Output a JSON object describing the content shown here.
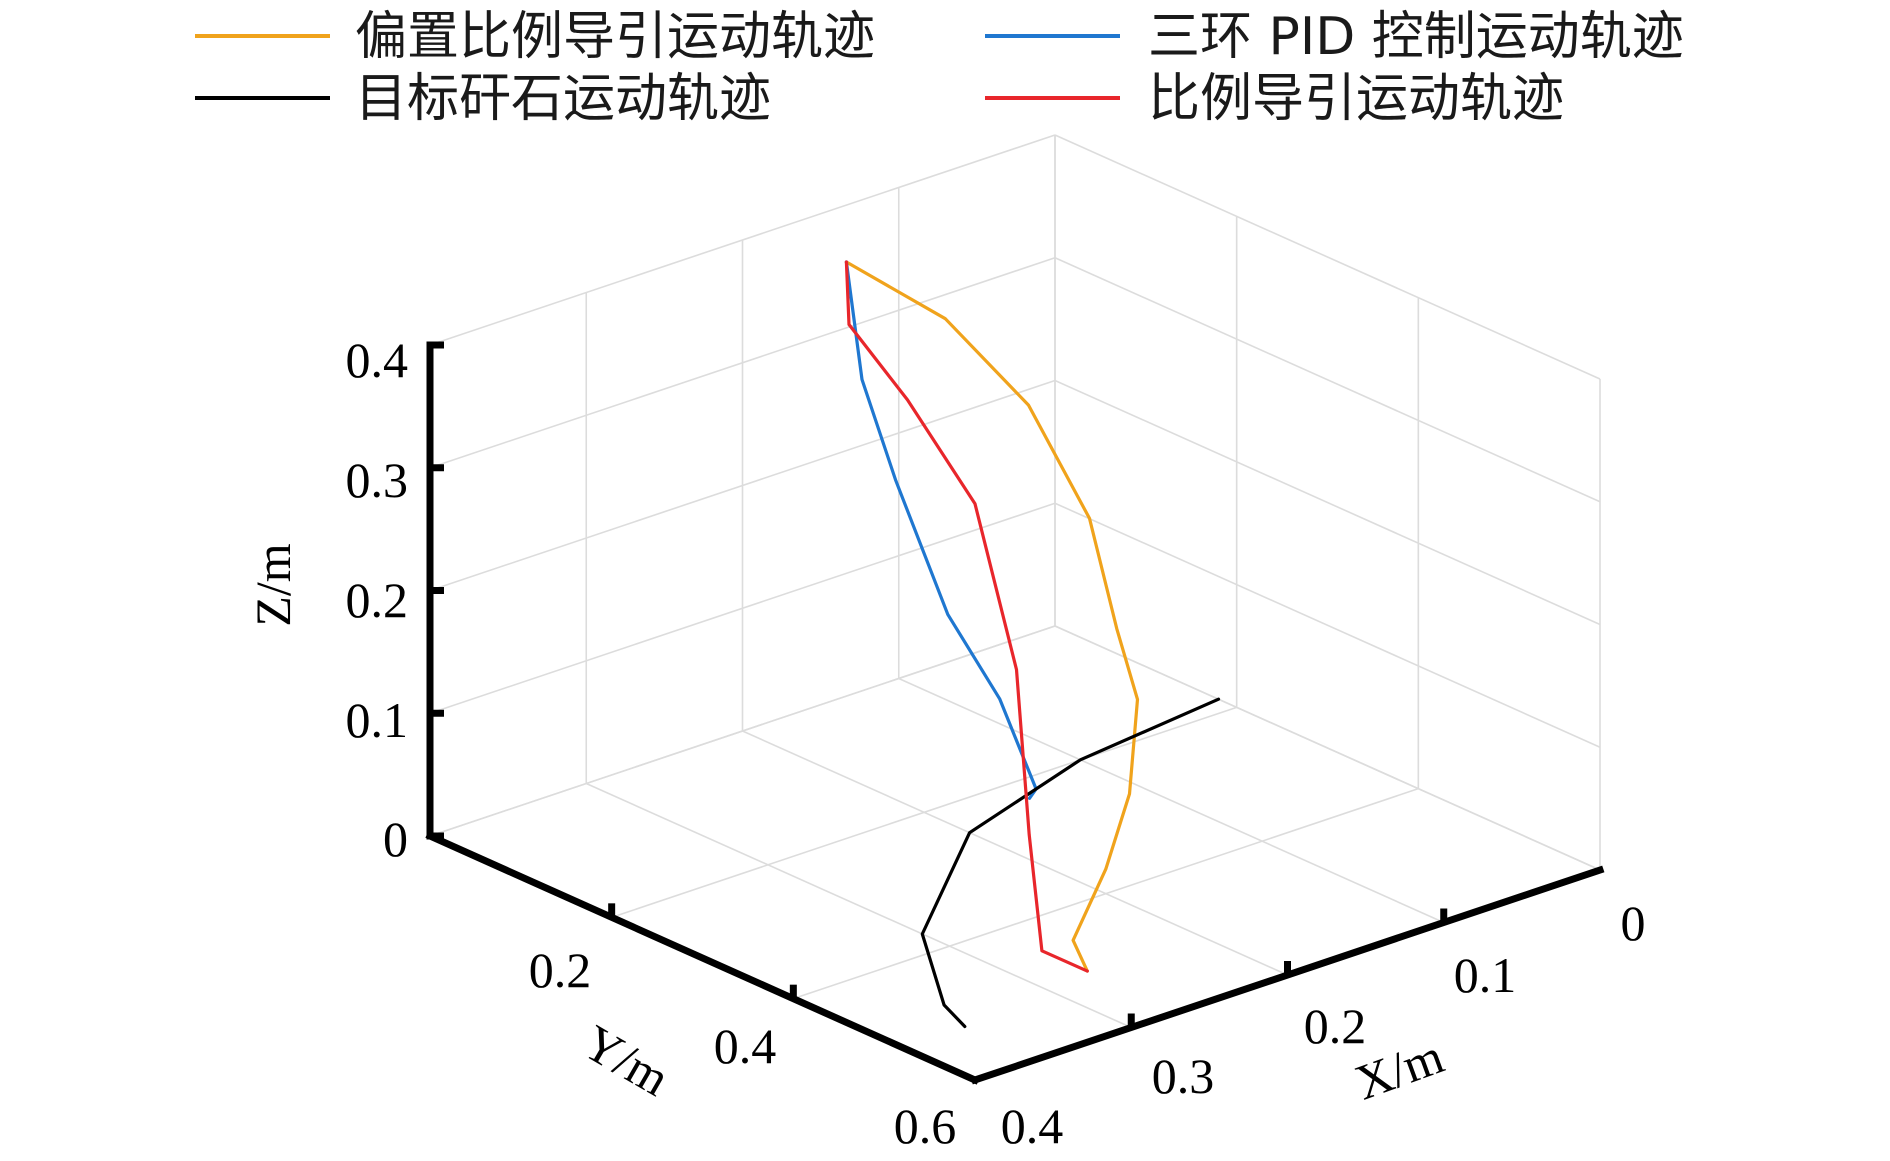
{
  "chart_data": {
    "type": "line",
    "dimensions": 3,
    "xlabel": "X/m",
    "ylabel": "Y/m",
    "zlabel": "Z/m",
    "xlim": [
      0,
      0.4
    ],
    "ylim": [
      0,
      0.6
    ],
    "zlim": [
      0,
      0.4
    ],
    "xticks": [
      "0",
      "0.1",
      "0.2",
      "0.3",
      "0.4"
    ],
    "yticks": [
      "0.2",
      "0.4",
      "0.6"
    ],
    "zticks": [
      "0",
      "0.1",
      "0.2",
      "0.3",
      "0.4"
    ],
    "grid": true,
    "legend_position": "top",
    "series": [
      {
        "name": "偏置比例导引运动轨迹",
        "color": "#f0a31c",
        "points": [
          [
            0.18,
            0.08,
            0.4
          ],
          [
            0.14,
            0.12,
            0.35
          ],
          [
            0.11,
            0.16,
            0.28
          ],
          [
            0.1,
            0.21,
            0.2
          ],
          [
            0.1,
            0.24,
            0.12
          ],
          [
            0.11,
            0.28,
            0.08
          ],
          [
            0.15,
            0.34,
            0.04
          ],
          [
            0.2,
            0.4,
            0.02
          ],
          [
            0.25,
            0.45,
            0.0
          ],
          [
            0.27,
            0.5,
            0.0
          ]
        ]
      },
      {
        "name": "三环 PID 控制运动轨迹",
        "color": "#1f77d0",
        "points": [
          [
            0.18,
            0.08,
            0.4
          ],
          [
            0.17,
            0.08,
            0.3
          ],
          [
            0.16,
            0.1,
            0.22
          ],
          [
            0.15,
            0.14,
            0.12
          ],
          [
            0.14,
            0.18,
            0.06
          ],
          [
            0.14,
            0.2,
            0.03
          ],
          [
            0.14,
            0.22,
            0.0
          ],
          [
            0.15,
            0.23,
            0.0
          ]
        ]
      },
      {
        "name": "目标矸石运动轨迹",
        "color": "#000000",
        "points": [
          [
            0.0,
            0.18,
            0.0
          ],
          [
            0.1,
            0.2,
            0.0
          ],
          [
            0.2,
            0.25,
            0.0
          ],
          [
            0.3,
            0.37,
            0.0
          ],
          [
            0.35,
            0.48,
            0.0
          ],
          [
            0.36,
            0.52,
            0.0
          ]
        ]
      },
      {
        "name": "比例导引运动轨迹",
        "color": "#e8262b",
        "points": [
          [
            0.18,
            0.08,
            0.4
          ],
          [
            0.19,
            0.1,
            0.36
          ],
          [
            0.17,
            0.13,
            0.3
          ],
          [
            0.15,
            0.17,
            0.22
          ],
          [
            0.17,
            0.25,
            0.12
          ],
          [
            0.22,
            0.35,
            0.04
          ],
          [
            0.27,
            0.45,
            0.0
          ],
          [
            0.27,
            0.5,
            0.0
          ]
        ]
      }
    ]
  }
}
